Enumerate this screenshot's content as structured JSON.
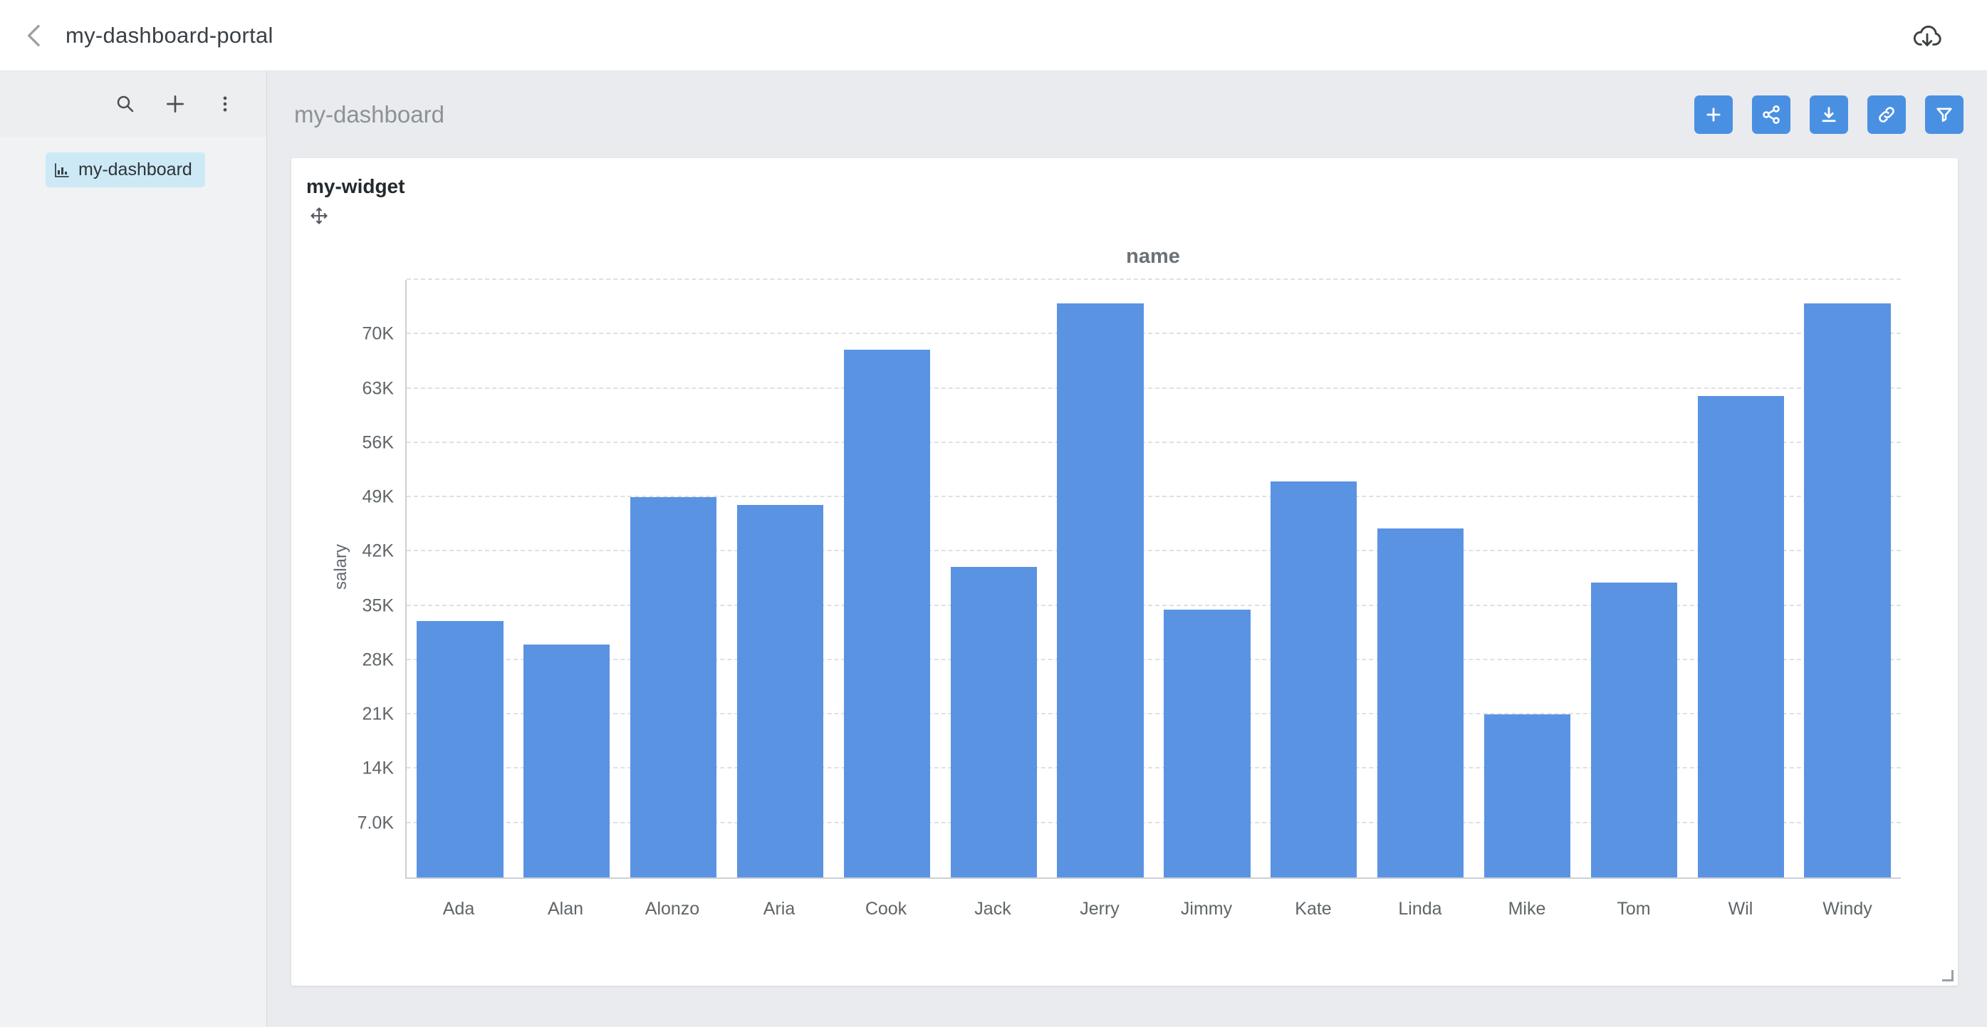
{
  "topbar": {
    "title": "my-dashboard-portal"
  },
  "sidebar": {
    "item_label": "my-dashboard"
  },
  "main": {
    "title": "my-dashboard",
    "toolbar_buttons": [
      "add",
      "share",
      "download",
      "link",
      "filter"
    ]
  },
  "widget": {
    "title": "my-widget"
  },
  "chart_data": {
    "type": "bar",
    "title": "name",
    "xlabel": "name",
    "ylabel": "salary",
    "categories": [
      "Ada",
      "Alan",
      "Alonzo",
      "Aria",
      "Cook",
      "Jack",
      "Jerry",
      "Jimmy",
      "Kate",
      "Linda",
      "Mike",
      "Tom",
      "Wil",
      "Windy"
    ],
    "values": [
      33000,
      30000,
      49000,
      48000,
      68000,
      40000,
      74000,
      34500,
      51000,
      45000,
      21000,
      38000,
      62000,
      74000
    ],
    "ylim": [
      0,
      77000
    ],
    "ytick_step": 7000,
    "ytick_labels": [
      "7.0K",
      "14K",
      "21K",
      "28K",
      "35K",
      "42K",
      "49K",
      "56K",
      "63K",
      "70K"
    ],
    "bar_color": "#5b93e3",
    "grid": true,
    "legend": false
  },
  "colors": {
    "accent": "#4a90e2",
    "bar": "#5b93e3",
    "selected_bg": "#cde9f6",
    "main_bg": "#e9ebee"
  }
}
